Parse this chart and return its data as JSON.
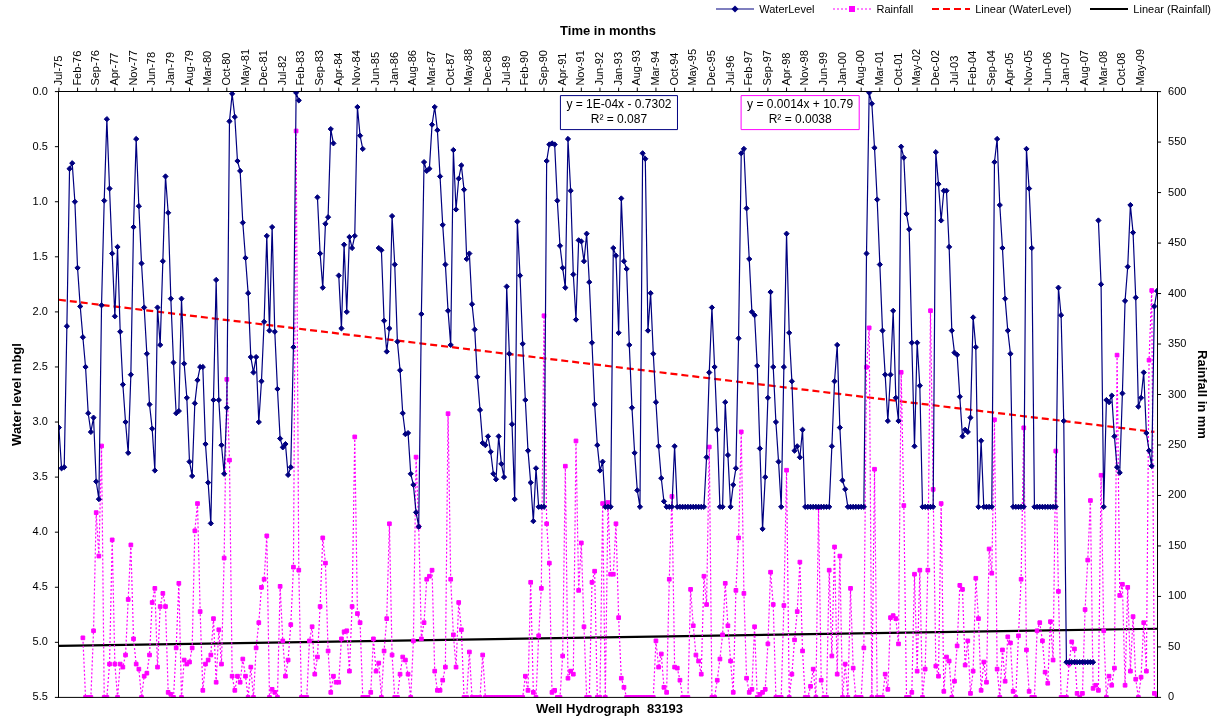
{
  "chart_data": {
    "type": "line",
    "title": "Well Hydrograph  83193",
    "xlabel": "Time in months",
    "ylabel": "Water level mbgl",
    "y2label": "Rainfall in mm",
    "legend": "top right",
    "grid": false,
    "annotations": [
      "y = 1E-04x - 0.7302\nR² = 0.087",
      "y = 0.0014x + 10.79\nR² = 0.0038"
    ],
    "xlim": [
      "1975-07",
      "2009-11"
    ],
    "xticks": [
      {
        "value": "1975-07",
        "label": "Jul-75"
      },
      {
        "value": "1976-02",
        "label": "Feb-76"
      },
      {
        "value": "1976-09",
        "label": "Sep-76"
      },
      {
        "value": "1977-04",
        "label": "Apr-77"
      },
      {
        "value": "1977-11",
        "label": "Nov-77"
      },
      {
        "value": "1978-06",
        "label": "Jun-78"
      },
      {
        "value": "1979-01",
        "label": "Jan-79"
      },
      {
        "value": "1979-08",
        "label": "Aug-79"
      },
      {
        "value": "1980-03",
        "label": "Mar-80"
      },
      {
        "value": "1980-10",
        "label": "Oct-80"
      },
      {
        "value": "1981-05",
        "label": "May-81"
      },
      {
        "value": "1981-12",
        "label": "Dec-81"
      },
      {
        "value": "1982-07",
        "label": "Jul-82"
      },
      {
        "value": "1983-02",
        "label": "Feb-83"
      },
      {
        "value": "1983-09",
        "label": "Sep-83"
      },
      {
        "value": "1984-04",
        "label": "Apr-84"
      },
      {
        "value": "1984-11",
        "label": "Nov-84"
      },
      {
        "value": "1985-06",
        "label": "Jun-85"
      },
      {
        "value": "1986-01",
        "label": "Jan-86"
      },
      {
        "value": "1986-08",
        "label": "Aug-86"
      },
      {
        "value": "1987-03",
        "label": "Mar-87"
      },
      {
        "value": "1987-10",
        "label": "Oct-87"
      },
      {
        "value": "1988-05",
        "label": "May-88"
      },
      {
        "value": "1988-12",
        "label": "Dec-88"
      },
      {
        "value": "1989-07",
        "label": "Jul-89"
      },
      {
        "value": "1990-02",
        "label": "Feb-90"
      },
      {
        "value": "1990-09",
        "label": "Sep-90"
      },
      {
        "value": "1991-04",
        "label": "Apr-91"
      },
      {
        "value": "1991-11",
        "label": "Nov-91"
      },
      {
        "value": "1992-06",
        "label": "Jun-92"
      },
      {
        "value": "1993-01",
        "label": "Jan-93"
      },
      {
        "value": "1993-08",
        "label": "Aug-93"
      },
      {
        "value": "1994-03",
        "label": "Mar-94"
      },
      {
        "value": "1994-10",
        "label": "Oct-94"
      },
      {
        "value": "1995-05",
        "label": "May-95"
      },
      {
        "value": "1995-12",
        "label": "Dec-95"
      },
      {
        "value": "1996-07",
        "label": "Jul-96"
      },
      {
        "value": "1997-02",
        "label": "Feb-97"
      },
      {
        "value": "1997-09",
        "label": "Sep-97"
      },
      {
        "value": "1998-04",
        "label": "Apr-98"
      },
      {
        "value": "1998-11",
        "label": "Nov-98"
      },
      {
        "value": "1999-06",
        "label": "Jun-99"
      },
      {
        "value": "2000-01",
        "label": "Jan-00"
      },
      {
        "value": "2000-08",
        "label": "Aug-00"
      },
      {
        "value": "2001-03",
        "label": "Mar-01"
      },
      {
        "value": "2001-10",
        "label": "Oct-01"
      },
      {
        "value": "2002-05",
        "label": "May-02"
      },
      {
        "value": "2002-12",
        "label": "Dec-02"
      },
      {
        "value": "2003-07",
        "label": "Jul-03"
      },
      {
        "value": "2004-02",
        "label": "Feb-04"
      },
      {
        "value": "2004-09",
        "label": "Sep-04"
      },
      {
        "value": "2005-04",
        "label": "Apr-05"
      },
      {
        "value": "2005-11",
        "label": "Nov-05"
      },
      {
        "value": "2006-06",
        "label": "Jun-06"
      },
      {
        "value": "2007-01",
        "label": "Jan-07"
      },
      {
        "value": "2007-08",
        "label": "Aug-07"
      },
      {
        "value": "2008-03",
        "label": "Mar-08"
      },
      {
        "value": "2008-10",
        "label": "Oct-08"
      },
      {
        "value": "2009-05",
        "label": "May-09"
      }
    ],
    "ylim": [
      5.5,
      0
    ],
    "yticks": [
      {
        "value": 0,
        "label": "0.0"
      },
      0.5,
      {
        "value": 1,
        "label": "1.0"
      },
      1.5,
      {
        "value": 2,
        "label": "2.0"
      },
      2.5,
      {
        "value": 3,
        "label": "3.0"
      },
      3.5,
      {
        "value": 4,
        "label": "4.0"
      },
      4.5,
      {
        "value": 5,
        "label": "5.0"
      },
      5.5
    ],
    "y2lim": [
      0,
      600
    ],
    "y2ticks": [
      0,
      50,
      100,
      150,
      200,
      250,
      300,
      350,
      400,
      450,
      500,
      550,
      600
    ],
    "x": [
      "1975-07",
      "1975-08",
      "1975-09",
      "1975-10",
      "1975-11",
      "1975-12",
      "1976-01",
      "1976-02",
      "1976-03",
      "1976-04",
      "1976-05",
      "1976-06",
      "1976-07",
      "1976-08",
      "1976-09",
      "1976-10",
      "1976-11",
      "1976-12",
      "1977-01",
      "1977-02",
      "1977-03",
      "1977-04",
      "1977-05",
      "1977-06",
      "1977-07",
      "1977-08",
      "1977-09",
      "1977-10",
      "1977-11",
      "1977-12",
      "1978-01",
      "1978-02",
      "1978-03",
      "1978-04",
      "1978-05",
      "1978-06",
      "1978-07",
      "1978-08",
      "1978-09",
      "1978-10",
      "1978-11",
      "1978-12",
      "1979-01",
      "1979-02",
      "1979-03",
      "1979-04",
      "1979-05",
      "1979-06",
      "1979-07",
      "1979-08",
      "1979-09",
      "1979-10",
      "1979-11",
      "1979-12",
      "1980-01",
      "1980-02",
      "1980-03",
      "1980-04",
      "1980-05",
      "1980-06",
      "1980-07",
      "1980-08",
      "1980-09",
      "1980-10",
      "1980-11",
      "1980-12",
      "1981-01",
      "1981-02",
      "1981-03",
      "1981-04",
      "1981-05",
      "1981-06",
      "1981-07",
      "1981-08",
      "1981-09",
      "1981-10",
      "1981-11",
      "1981-12",
      "1982-01",
      "1982-02",
      "1982-03",
      "1982-04",
      "1982-05",
      "1982-06",
      "1982-07",
      "1982-08",
      "1982-09",
      "1982-10",
      "1982-11",
      "1982-12",
      "1983-01",
      "1983-02",
      "1983-03",
      "1983-04",
      "1983-05",
      "1983-06",
      "1983-07",
      "1983-08",
      "1983-09",
      "1983-10",
      "1983-11",
      "1983-12",
      "1984-01",
      "1984-02",
      "1984-03",
      "1984-04",
      "1984-05",
      "1984-06",
      "1984-07",
      "1984-08",
      "1984-09",
      "1984-10",
      "1984-11",
      "1984-12",
      "1985-01",
      "1985-02",
      "1985-03",
      "1985-04",
      "1985-05",
      "1985-06",
      "1985-07",
      "1985-08",
      "1985-09",
      "1985-10",
      "1985-11",
      "1985-12",
      "1986-01",
      "1986-02",
      "1986-03",
      "1986-04",
      "1986-05",
      "1986-06",
      "1986-07",
      "1986-08",
      "1986-09",
      "1986-10",
      "1986-11",
      "1986-12",
      "1987-01",
      "1987-02",
      "1987-03",
      "1987-04",
      "1987-05",
      "1987-06",
      "1987-07",
      "1987-08",
      "1987-09",
      "1987-10",
      "1987-11",
      "1987-12",
      "1988-01",
      "1988-02",
      "1988-03",
      "1988-04",
      "1988-05",
      "1988-06",
      "1988-07",
      "1988-08",
      "1988-09",
      "1988-10",
      "1988-11",
      "1988-12",
      "1989-01",
      "1989-02",
      "1989-03",
      "1989-04",
      "1989-05",
      "1989-06",
      "1989-07",
      "1989-08",
      "1989-09",
      "1989-10",
      "1989-11",
      "1989-12",
      "1990-01",
      "1990-02",
      "1990-03",
      "1990-04",
      "1990-05",
      "1990-06",
      "1990-07",
      "1990-08",
      "1990-09",
      "1990-10",
      "1990-11",
      "1990-12",
      "1991-01",
      "1991-02",
      "1991-03",
      "1991-04",
      "1991-05",
      "1991-06",
      "1991-07",
      "1991-08",
      "1991-09",
      "1991-10",
      "1991-11",
      "1991-12",
      "1992-01",
      "1992-02",
      "1992-03",
      "1992-04",
      "1992-05",
      "1992-06",
      "1992-07",
      "1992-08",
      "1992-09",
      "1992-10",
      "1992-11",
      "1992-12",
      "1993-01",
      "1993-02",
      "1993-03",
      "1993-04",
      "1993-05",
      "1993-06",
      "1993-07",
      "1993-08",
      "1993-09",
      "1993-10",
      "1993-11",
      "1993-12",
      "1994-01",
      "1994-02",
      "1994-03",
      "1994-04",
      "1994-05",
      "1994-06",
      "1994-07",
      "1994-08",
      "1994-09",
      "1994-10",
      "1994-11",
      "1994-12",
      "1995-01",
      "1995-02",
      "1995-03",
      "1995-04",
      "1995-05",
      "1995-06",
      "1995-07",
      "1995-08",
      "1995-09",
      "1995-10",
      "1995-11",
      "1995-12",
      "1996-01",
      "1996-02",
      "1996-03",
      "1996-04",
      "1996-05",
      "1996-06",
      "1996-07",
      "1996-08",
      "1996-09",
      "1996-10",
      "1996-11",
      "1996-12",
      "1997-01",
      "1997-02",
      "1997-03",
      "1997-04",
      "1997-05",
      "1997-06",
      "1997-07",
      "1997-08",
      "1997-09",
      "1997-10",
      "1997-11",
      "1997-12",
      "1998-01",
      "1998-02",
      "1998-03",
      "1998-04",
      "1998-05",
      "1998-06",
      "1998-07",
      "1998-08",
      "1998-09",
      "1998-10",
      "1998-11",
      "1998-12",
      "1999-01",
      "1999-02",
      "1999-03",
      "1999-04",
      "1999-05",
      "1999-06",
      "1999-07",
      "1999-08",
      "1999-09",
      "1999-10",
      "1999-11",
      "1999-12",
      "2000-01",
      "2000-02",
      "2000-03",
      "2000-04",
      "2000-05",
      "2000-06",
      "2000-07",
      "2000-08",
      "2000-09",
      "2000-10",
      "2000-11",
      "2000-12",
      "2001-01",
      "2001-02",
      "2001-03",
      "2001-04",
      "2001-05",
      "2001-06",
      "2001-07",
      "2001-08",
      "2001-09",
      "2001-10",
      "2001-11",
      "2001-12",
      "2002-01",
      "2002-02",
      "2002-03",
      "2002-04",
      "2002-05",
      "2002-06",
      "2002-07",
      "2002-08",
      "2002-09",
      "2002-10",
      "2002-11",
      "2002-12",
      "2003-01",
      "2003-02",
      "2003-03",
      "2003-04",
      "2003-05",
      "2003-06",
      "2003-07",
      "2003-08",
      "2003-09",
      "2003-10",
      "2003-11",
      "2003-12",
      "2004-01",
      "2004-02",
      "2004-03",
      "2004-04",
      "2004-05",
      "2004-06",
      "2004-07",
      "2004-08",
      "2004-09",
      "2004-10",
      "2004-11",
      "2004-12",
      "2005-01",
      "2005-02",
      "2005-03",
      "2005-04",
      "2005-05",
      "2005-06",
      "2005-07",
      "2005-08",
      "2005-09",
      "2005-10",
      "2005-11",
      "2005-12",
      "2006-01",
      "2006-02",
      "2006-03",
      "2006-04",
      "2006-05",
      "2006-06",
      "2006-07",
      "2006-08",
      "2006-09",
      "2006-10",
      "2006-11",
      "2006-12",
      "2007-01",
      "2007-02",
      "2007-03",
      "2007-04",
      "2007-05",
      "2007-06",
      "2007-07",
      "2007-08",
      "2007-09",
      "2007-10",
      "2007-11",
      "2007-12",
      "2008-01",
      "2008-02",
      "2008-03",
      "2008-04",
      "2008-05",
      "2008-06",
      "2008-07",
      "2008-08",
      "2008-09",
      "2008-10",
      "2008-11",
      "2008-12",
      "2009-01",
      "2009-02",
      "2009-03",
      "2009-04",
      "2009-05",
      "2009-06",
      "2009-07",
      "2009-08",
      "2009-09",
      "2009-10",
      "2009-11"
    ],
    "series": [
      {
        "name": "WaterLevel",
        "color": "#000080",
        "marker": "diamond",
        "line_style": "solid",
        "values": [
          3.05,
          3.42,
          3.41,
          2.13,
          0.7,
          0.65,
          1.0,
          1.6,
          1.95,
          2.23,
          2.5,
          2.92,
          3.09,
          2.96,
          3.54,
          3.7,
          1.94,
          0.99,
          0.25,
          0.88,
          1.47,
          2.04,
          1.41,
          2.18,
          2.66,
          3.0,
          3.28,
          2.57,
          1.23,
          0.43,
          1.04,
          1.56,
          1.96,
          2.38,
          2.84,
          3.06,
          3.44,
          1.96,
          2.3,
          1.54,
          0.77,
          1.1,
          1.88,
          2.46,
          2.92,
          2.9,
          1.88,
          2.47,
          2.78,
          3.36,
          3.49,
          2.83,
          2.62,
          2.5,
          2.5,
          3.2,
          3.55,
          3.92,
          2.8,
          1.71,
          2.8,
          3.21,
          3.47,
          2.87,
          0.27,
          0.02,
          0.23,
          0.63,
          0.72,
          1.19,
          1.51,
          1.83,
          2.41,
          2.55,
          2.41,
          3.0,
          2.63,
          2.09,
          1.31,
          2.17,
          1.23,
          2.18,
          2.7,
          3.15,
          3.23,
          3.2,
          3.48,
          3.41,
          2.32,
          0.01,
          0.08,
          null,
          null,
          null,
          null,
          null,
          null,
          0.96,
          1.47,
          1.78,
          1.2,
          1.14,
          0.34,
          0.47,
          null,
          1.67,
          2.15,
          1.39,
          2.0,
          1.32,
          1.42,
          1.31,
          0.14,
          0.4,
          0.52,
          null,
          null,
          null,
          null,
          null,
          1.42,
          1.44,
          2.08,
          2.36,
          2.15,
          1.13,
          1.57,
          2.27,
          2.53,
          2.92,
          3.11,
          3.1,
          3.47,
          3.57,
          3.82,
          3.95,
          2.02,
          0.64,
          0.72,
          0.7,
          0.3,
          0.14,
          0.35,
          0.77,
          1.21,
          1.57,
          1.99,
          2.3,
          0.53,
          1.07,
          0.79,
          0.67,
          0.89,
          1.52,
          1.47,
          1.93,
          2.16,
          2.59,
          2.89,
          3.19,
          3.21,
          3.13,
          3.27,
          3.47,
          3.52,
          3.13,
          3.38,
          3.5,
          1.77,
          2.38,
          3.02,
          3.7,
          1.18,
          1.67,
          2.29,
          2.8,
          3.26,
          3.55,
          3.9,
          3.42,
          3.77,
          3.77,
          3.77,
          0.63,
          0.48,
          0.47,
          0.48,
          0.99,
          1.4,
          1.6,
          1.78,
          0.43,
          0.9,
          1.66,
          2.07,
          1.35,
          1.36,
          1.54,
          1.29,
          1.73,
          2.28,
          2.84,
          3.21,
          3.44,
          3.36,
          3.77,
          3.77,
          3.77,
          1.42,
          1.49,
          2.19,
          0.97,
          1.54,
          1.61,
          2.3,
          2.87,
          3.28,
          3.62,
          3.77,
          0.56,
          0.61,
          2.17,
          1.83,
          2.38,
          2.82,
          3.22,
          3.51,
          3.72,
          3.77,
          3.77,
          3.77,
          3.22,
          3.77,
          3.77,
          3.77,
          3.77,
          3.77,
          3.77,
          3.77,
          3.77,
          3.77,
          3.77,
          3.77,
          3.32,
          2.55,
          1.96,
          2.5,
          3.07,
          3.77,
          3.77,
          2.82,
          3.3,
          3.77,
          3.57,
          3.42,
          2.24,
          0.56,
          0.52,
          1.06,
          1.52,
          2.0,
          2.03,
          2.49,
          3.24,
          3.97,
          3.5,
          2.78,
          1.82,
          2.5,
          3.0,
          3.36,
          3.77,
          2.5,
          1.29,
          2.19,
          2.63,
          3.26,
          3.22,
          3.32,
          3.07,
          3.77,
          3.77,
          3.77,
          3.77,
          3.77,
          3.77,
          3.77,
          3.77,
          3.77,
          3.77,
          3.22,
          2.63,
          2.3,
          3.05,
          3.53,
          3.61,
          3.77,
          3.77,
          3.77,
          3.77,
          3.77,
          3.77,
          3.77,
          1.47,
          0.01,
          0.11,
          0.51,
          0.98,
          1.57,
          2.17,
          2.57,
          2.99,
          2.57,
          1.99,
          2.78,
          2.99,
          0.5,
          0.6,
          1.11,
          1.25,
          2.28,
          3.22,
          2.28,
          2.67,
          3.77,
          3.77,
          3.77,
          3.77,
          3.77,
          0.55,
          0.84,
          1.17,
          0.9,
          0.9,
          1.41,
          2.17,
          2.37,
          2.39,
          2.77,
          3.13,
          3.07,
          3.09,
          2.96,
          2.05,
          2.32,
          3.77,
          3.17,
          3.77,
          3.77,
          3.77,
          3.77,
          0.64,
          0.43,
          1.03,
          1.42,
          1.88,
          2.17,
          2.38,
          3.77,
          3.77,
          3.77,
          3.77,
          3.77,
          0.52,
          0.88,
          1.42,
          3.77,
          3.77,
          3.77,
          3.77,
          3.77,
          3.77,
          3.77,
          3.77,
          3.77,
          1.78,
          2.03,
          2.99,
          5.18,
          5.18,
          5.18,
          5.18,
          5.18,
          5.18,
          5.18,
          5.18,
          5.18,
          5.18,
          5.18,
          null,
          1.17,
          1.75,
          3.77,
          2.8,
          2.82,
          2.76,
          3.13,
          3.41,
          3.46,
          2.74,
          1.9,
          1.59,
          1.03,
          1.28,
          1.87,
          2.86,
          2.78,
          2.55,
          3.1,
          3.26,
          3.4,
          1.95,
          1.81
        ]
      },
      {
        "name": "Rainfall",
        "color": "#ff00ff",
        "marker": "square",
        "line_style": "dotted",
        "axis": "y2",
        "values": [
          null,
          null,
          null,
          null,
          null,
          null,
          null,
          null,
          null,
          59,
          0,
          0,
          0,
          66,
          183,
          140,
          249,
          0,
          0,
          33,
          156,
          33,
          0,
          33,
          30,
          42,
          97,
          151,
          58,
          33,
          28,
          0,
          21,
          24,
          42,
          94,
          108,
          30,
          90,
          103,
          90,
          5,
          3,
          0,
          49,
          113,
          0,
          37,
          33,
          35,
          49,
          165,
          192,
          85,
          7,
          33,
          37,
          42,
          78,
          15,
          67,
          33,
          138,
          315,
          235,
          21,
          7,
          21,
          15,
          38,
          21,
          0,
          30,
          0,
          49,
          74,
          109,
          117,
          160,
          0,
          8,
          5,
          0,
          110,
          56,
          21,
          37,
          72,
          129,
          561,
          126,
          0,
          0,
          0,
          56,
          70,
          23,
          40,
          90,
          158,
          133,
          46,
          5,
          21,
          15,
          15,
          58,
          65,
          66,
          26,
          90,
          258,
          83,
          74,
          0,
          0,
          0,
          5,
          58,
          26,
          34,
          0,
          46,
          78,
          172,
          42,
          0,
          0,
          23,
          40,
          37,
          23,
          0,
          56,
          238,
          169,
          58,
          74,
          117,
          120,
          126,
          26,
          7,
          7,
          17,
          30,
          281,
          117,
          62,
          30,
          94,
          67,
          0,
          0,
          45,
          0,
          0,
          0,
          0,
          42,
          0,
          0,
          0,
          0,
          0,
          0,
          0,
          0,
          0,
          0,
          0,
          0,
          0,
          0,
          0,
          21,
          7,
          114,
          5,
          0,
          61,
          108,
          378,
          172,
          133,
          5,
          7,
          0,
          0,
          41,
          229,
          19,
          26,
          23,
          254,
          106,
          153,
          70,
          0,
          0,
          114,
          125,
          0,
          0,
          192,
          0,
          193,
          122,
          122,
          172,
          79,
          19,
          10,
          0,
          0,
          0,
          0,
          0,
          0,
          0,
          0,
          0,
          0,
          0,
          56,
          30,
          43,
          10,
          5,
          117,
          199,
          30,
          29,
          17,
          0,
          0,
          0,
          107,
          71,
          42,
          36,
          23,
          120,
          92,
          248,
          0,
          0,
          17,
          38,
          62,
          113,
          71,
          36,
          5,
          106,
          158,
          263,
          103,
          19,
          5,
          8,
          70,
          0,
          3,
          5,
          8,
          53,
          124,
          92,
          0,
          0,
          0,
          91,
          225,
          0,
          23,
          57,
          85,
          134,
          46,
          0,
          0,
          11,
          28,
          0,
          188,
          17,
          0,
          0,
          126,
          41,
          149,
          23,
          140,
          0,
          33,
          0,
          108,
          29,
          0,
          0,
          0,
          49,
          327,
          366,
          0,
          226,
          0,
          0,
          0,
          23,
          8,
          79,
          81,
          78,
          53,
          322,
          190,
          0,
          0,
          5,
          122,
          26,
          126,
          0,
          28,
          126,
          383,
          206,
          31,
          21,
          192,
          6,
          40,
          36,
          0,
          16,
          51,
          111,
          107,
          32,
          56,
          4,
          26,
          118,
          78,
          7,
          35,
          15,
          147,
          123,
          275,
          28,
          0,
          47,
          16,
          60,
          54,
          6,
          0,
          61,
          117,
          267,
          47,
          6,
          0,
          0,
          66,
          74,
          56,
          25,
          14,
          75,
          37,
          244,
          105,
          0,
          0,
          0,
          33,
          55,
          48,
          4,
          0,
          4,
          87,
          136,
          195,
          9,
          12,
          7,
          220,
          66,
          0,
          21,
          12,
          29,
          339,
          101,
          112,
          12,
          109,
          26,
          80,
          18,
          0,
          20,
          74,
          26,
          334,
          403,
          4,
          0
        ]
      },
      {
        "name": "Linear (WaterLevel)",
        "type": "line",
        "color": "#ff0000",
        "marker": "none",
        "line_style": "dashed",
        "x": [
          "1975-07",
          "2009-10"
        ],
        "values": [
          1.89,
          3.09
        ]
      },
      {
        "name": "Linear (Rainfall)",
        "type": "line",
        "color": "#000000",
        "marker": "none",
        "line_style": "solid",
        "axis": "y2",
        "x": [
          "1975-07",
          "2009-11"
        ],
        "values": [
          51,
          68
        ]
      }
    ]
  }
}
